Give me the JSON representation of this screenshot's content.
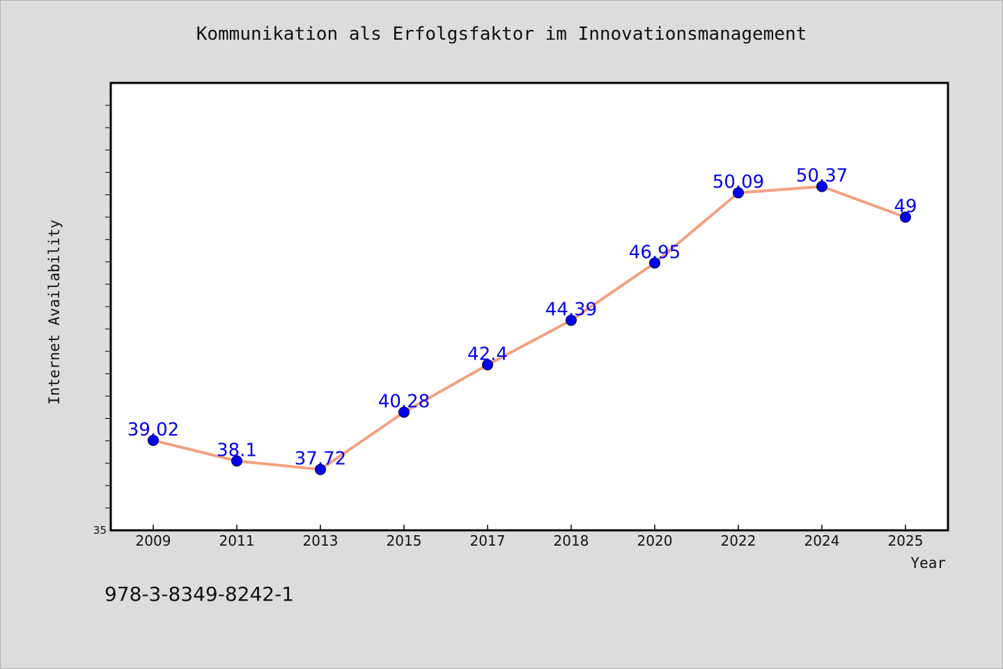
{
  "chart_data": {
    "type": "line",
    "title": "Kommunikation als Erfolgsfaktor im Innovationsmanagement",
    "xlabel": "Year",
    "ylabel": "Internet Availability",
    "categories": [
      "2009",
      "2011",
      "2013",
      "2015",
      "2017",
      "2018",
      "2020",
      "2022",
      "2024",
      "2025"
    ],
    "series": [
      {
        "values": [
          39.02,
          38.1,
          37.72,
          40.28,
          42.4,
          44.39,
          46.95,
          50.09,
          50.37,
          49
        ],
        "data_labels": [
          "39.02",
          "38.1",
          "37.72",
          "40.28",
          "42.4",
          "44.39",
          "46.95",
          "50.09",
          "50.37",
          "49"
        ]
      }
    ],
    "ylim": [
      35,
      55
    ],
    "y_tick_label": "35",
    "grid": false,
    "legend": "none",
    "colors": {
      "line": "#f4a07f",
      "marker": "#0000ee",
      "data_label": "#0000ee",
      "plot_bg": "#ffffff",
      "page_bg": "#dcdcdc"
    }
  },
  "footer": {
    "isbn": "978-3-8349-8242-1"
  }
}
